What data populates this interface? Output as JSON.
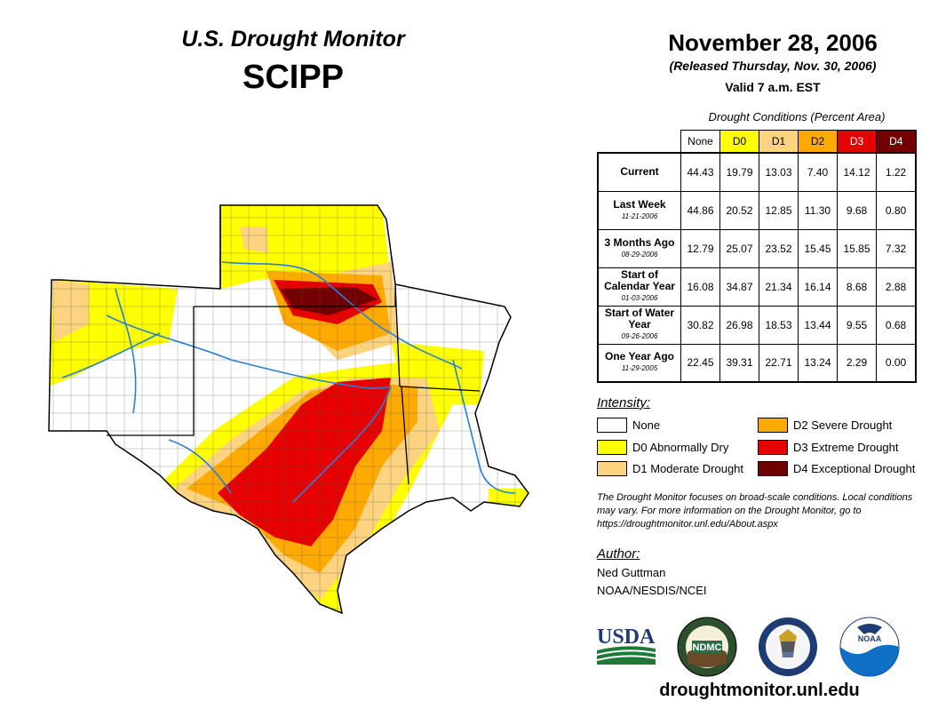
{
  "header": {
    "title_sub": "U.S. Drought Monitor",
    "region": "SCIPP"
  },
  "date_block": {
    "date": "November 28, 2006",
    "released": "(Released Thursday, Nov. 30, 2006)",
    "valid": "Valid 7 a.m. EST"
  },
  "conditions": {
    "caption": "Drought Conditions (Percent Area)",
    "columns": [
      {
        "label": "None",
        "color": "#ffffff",
        "text_color": "#000000"
      },
      {
        "label": "D0",
        "color": "#ffff00",
        "text_color": "#000000"
      },
      {
        "label": "D1",
        "color": "#fcd37f",
        "text_color": "#000000"
      },
      {
        "label": "D2",
        "color": "#ffaa00",
        "text_color": "#000000"
      },
      {
        "label": "D3",
        "color": "#e60000",
        "text_color": "#ffffff"
      },
      {
        "label": "D4",
        "color": "#730000",
        "text_color": "#ffffff"
      }
    ],
    "rows": [
      {
        "label": "Current",
        "sublabel": "",
        "values": [
          "44.43",
          "19.79",
          "13.03",
          "7.40",
          "14.12",
          "1.22"
        ]
      },
      {
        "label": "Last Week",
        "sublabel": "11-21-2006",
        "values": [
          "44.86",
          "20.52",
          "12.85",
          "11.30",
          "9.68",
          "0.80"
        ]
      },
      {
        "label": "3 Months Ago",
        "sublabel": "08-29-2006",
        "values": [
          "12.79",
          "25.07",
          "23.52",
          "15.45",
          "15.85",
          "7.32"
        ]
      },
      {
        "label": "Start of Calendar Year",
        "sublabel": "01-03-2006",
        "values": [
          "16.08",
          "34.87",
          "21.34",
          "16.14",
          "8.68",
          "2.88"
        ]
      },
      {
        "label": "Start of Water Year",
        "sublabel": "09-26-2006",
        "values": [
          "30.82",
          "26.98",
          "18.53",
          "13.44",
          "9.55",
          "0.68"
        ]
      },
      {
        "label": "One Year Ago",
        "sublabel": "11-29-2005",
        "values": [
          "22.45",
          "39.31",
          "22.71",
          "13.24",
          "2.29",
          "0.00"
        ]
      }
    ]
  },
  "intensity": {
    "title": "Intensity:",
    "items": [
      {
        "label": "None",
        "color": "#ffffff"
      },
      {
        "label": "D0 Abnormally Dry",
        "color": "#ffff00"
      },
      {
        "label": "D1 Moderate Drought",
        "color": "#fcd37f"
      },
      {
        "label": "D2 Severe Drought",
        "color": "#ffaa00"
      },
      {
        "label": "D3 Extreme Drought",
        "color": "#e60000"
      },
      {
        "label": "D4 Exceptional Drought",
        "color": "#730000"
      }
    ]
  },
  "note": "The Drought Monitor focuses on broad-scale conditions. Local conditions may vary. For more information on the Drought Monitor, go to https://droughtmonitor.unl.edu/About.aspx",
  "author": {
    "title": "Author:",
    "name": "Ned Guttman",
    "org": "NOAA/NESDIS/NCEI"
  },
  "logos": {
    "usda": "USDA",
    "ndmc": "NDMC",
    "noaa": "NOAA"
  },
  "url": "droughtmonitor.unl.edu"
}
